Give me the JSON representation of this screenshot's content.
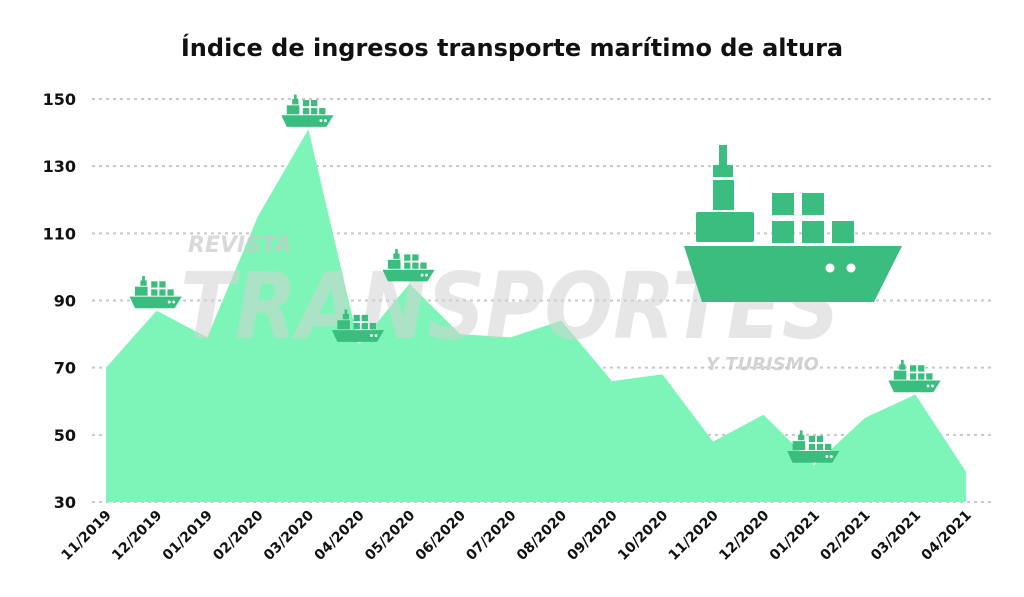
{
  "chart_data": {
    "type": "area",
    "title": "Índice de ingresos transporte marítimo de altura",
    "categories": [
      "11/2019",
      "12/2019",
      "01/2019",
      "02/2020",
      "03/2020",
      "04/2020",
      "05/2020",
      "06/2020",
      "07/2020",
      "08/2020",
      "09/2020",
      "10/2020",
      "11/2020",
      "12/2020",
      "01/2021",
      "02/2021",
      "03/2021",
      "04/2021"
    ],
    "values": [
      70,
      87,
      79,
      115,
      141,
      77,
      95,
      80,
      79,
      84,
      66,
      68,
      48,
      56,
      41,
      55,
      62,
      39
    ],
    "ylim": [
      30,
      150
    ],
    "yticks": [
      150,
      130,
      110,
      90,
      70,
      50,
      30
    ],
    "grid": true,
    "xlabel": "",
    "ylabel": "",
    "area_color": "#7ef5b8",
    "icon_color": "#3bbd80",
    "ship_markers": [
      "12/2019",
      "03/2020",
      "04/2020",
      "05/2020",
      "01/2021",
      "03/2021"
    ]
  },
  "watermark": {
    "top": "REVISTA",
    "main": "TRANSPORTES",
    "sub": "Y TURISMO"
  },
  "decor": {
    "large_icon": "cargo-ship-icon"
  }
}
